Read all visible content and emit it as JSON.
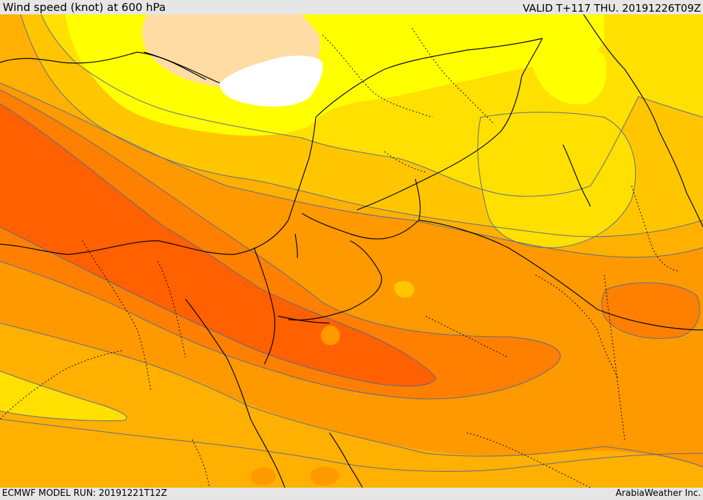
{
  "header": {
    "title": "Wind speed (knot) at 600 hPa",
    "valid": "VALID T+117 THU. 20191226T09Z"
  },
  "footer": {
    "model_run": "ECMWF MODEL RUN: 20191221T12Z",
    "credit": "ArabiaWeather Inc."
  },
  "colors": {
    "base": "#ffb000",
    "pale": "#fedca3",
    "lemon": "#ffff00",
    "yellow": "#ffe000",
    "light_orange": "#ffc600",
    "mid_orange": "#ff9900",
    "orange": "#ff8000",
    "deep_orange": "#ff6000",
    "white": "#ffffff",
    "contour": "#5a6a90",
    "border": "#000000"
  }
}
